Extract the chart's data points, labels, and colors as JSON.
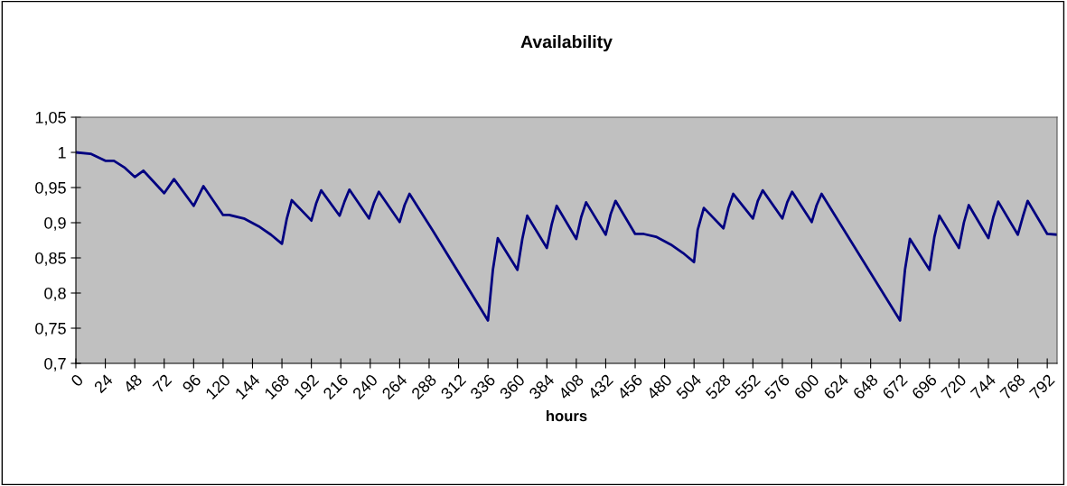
{
  "chart_data": {
    "type": "line",
    "title": "Availability",
    "xlabel": "hours",
    "x": [
      0,
      12,
      24,
      31,
      40,
      48,
      55,
      72,
      80,
      96,
      104,
      120,
      125,
      137,
      149,
      159,
      168,
      172,
      176,
      192,
      196,
      200,
      215,
      219,
      223,
      239,
      243,
      247,
      264,
      268,
      272,
      292,
      336,
      340,
      344,
      360,
      364,
      368,
      384,
      388,
      392,
      408,
      412,
      416,
      432,
      436,
      440,
      456,
      463,
      473,
      485,
      495,
      504,
      507,
      512,
      528,
      532,
      536,
      552,
      556,
      560,
      576,
      580,
      584,
      600,
      604,
      608,
      672,
      676,
      680,
      696,
      700,
      704,
      720,
      724,
      728,
      744,
      748,
      752,
      768,
      772,
      776,
      792,
      800
    ],
    "series": [
      {
        "color": "#000080",
        "values": [
          1.0,
          0.998,
          0.988,
          0.988,
          0.978,
          0.965,
          0.974,
          0.942,
          0.962,
          0.924,
          0.952,
          0.911,
          0.911,
          0.906,
          0.895,
          0.883,
          0.87,
          0.906,
          0.932,
          0.903,
          0.928,
          0.946,
          0.91,
          0.93,
          0.947,
          0.906,
          0.928,
          0.944,
          0.901,
          0.925,
          0.941,
          0.886,
          0.761,
          0.833,
          0.878,
          0.833,
          0.877,
          0.91,
          0.864,
          0.898,
          0.924,
          0.877,
          0.908,
          0.929,
          0.883,
          0.912,
          0.931,
          0.884,
          0.884,
          0.88,
          0.869,
          0.857,
          0.844,
          0.89,
          0.921,
          0.892,
          0.921,
          0.941,
          0.906,
          0.931,
          0.946,
          0.906,
          0.929,
          0.944,
          0.901,
          0.925,
          0.941,
          0.761,
          0.833,
          0.877,
          0.833,
          0.88,
          0.91,
          0.864,
          0.9,
          0.925,
          0.878,
          0.908,
          0.93,
          0.883,
          0.908,
          0.931,
          0.884,
          0.883
        ]
      }
    ],
    "xlim": [
      0,
      800
    ],
    "xticks": [
      0,
      24,
      48,
      72,
      96,
      120,
      144,
      168,
      192,
      216,
      240,
      264,
      288,
      312,
      336,
      360,
      384,
      408,
      432,
      456,
      480,
      504,
      528,
      552,
      576,
      600,
      624,
      648,
      672,
      696,
      720,
      744,
      768,
      792
    ],
    "ylim": [
      0.7,
      1.05
    ],
    "yticks": [
      {
        "value": 0.7,
        "label": "0,7"
      },
      {
        "value": 0.75,
        "label": "0,75"
      },
      {
        "value": 0.8,
        "label": "0,8"
      },
      {
        "value": 0.85,
        "label": "0,85"
      },
      {
        "value": 0.9,
        "label": "0,9"
      },
      {
        "value": 0.95,
        "label": "0,95"
      },
      {
        "value": 1,
        "label": "1"
      },
      {
        "value": 1.05,
        "label": "1,05"
      }
    ],
    "grid": false,
    "marker": "none",
    "line_style": "solid"
  }
}
